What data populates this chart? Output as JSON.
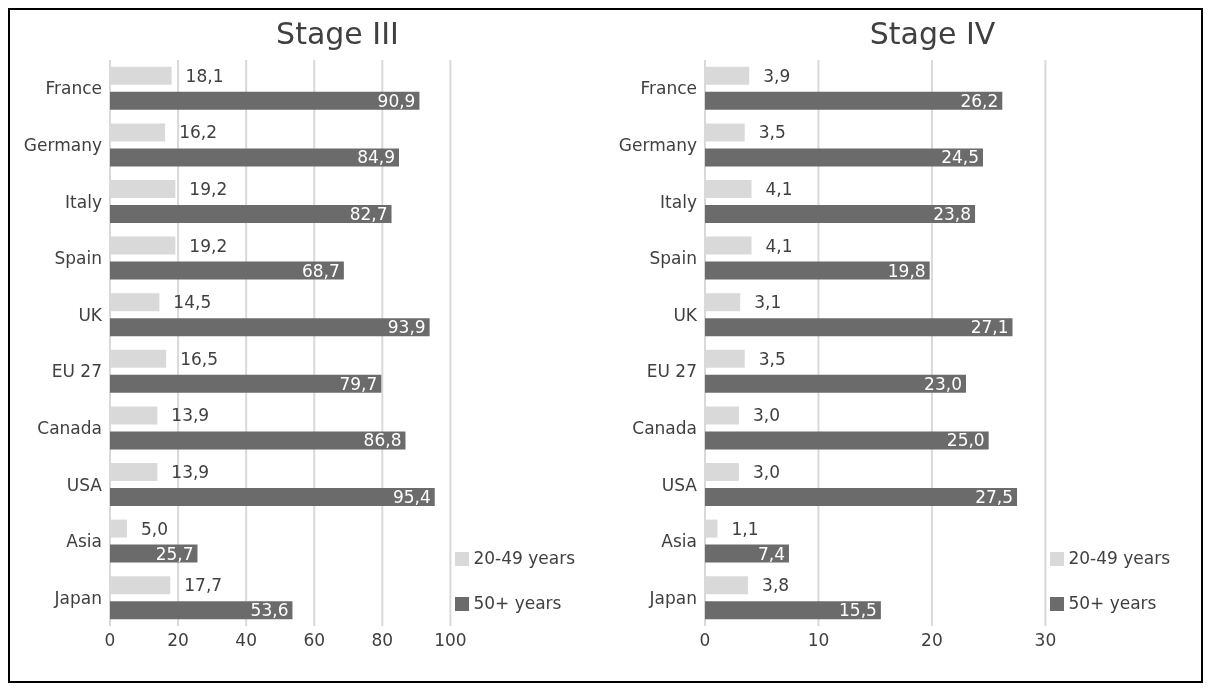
{
  "chart_data": [
    {
      "type": "bar",
      "title": "Stage III",
      "orientation": "horizontal",
      "categories": [
        "France",
        "Germany",
        "Italy",
        "Spain",
        "UK",
        "EU 27",
        "Canada",
        "USA",
        "Asia",
        "Japan"
      ],
      "series": [
        {
          "name": "20-49 years",
          "color": "#d9d9d9",
          "values": [
            18.1,
            16.2,
            19.2,
            19.2,
            14.5,
            16.5,
            13.9,
            13.9,
            5.0,
            17.7
          ],
          "value_labels": [
            "18,1",
            "16,2",
            "19,2",
            "19,2",
            "14,5",
            "16,5",
            "13,9",
            "13,9",
            "5,0",
            "17,7"
          ]
        },
        {
          "name": "50+ years",
          "color": "#6b6b6b",
          "values": [
            90.9,
            84.9,
            82.7,
            68.7,
            93.9,
            79.7,
            86.8,
            95.4,
            25.7,
            53.6
          ],
          "value_labels": [
            "90,9",
            "84,9",
            "82,7",
            "68,7",
            "93,9",
            "79,7",
            "86,8",
            "95,4",
            "25,7",
            "53,6"
          ]
        }
      ],
      "xlim": [
        0,
        100
      ],
      "xticks": [
        0,
        20,
        40,
        60,
        80,
        100
      ],
      "grid": "x",
      "legend": "bottom right"
    },
    {
      "type": "bar",
      "title": "Stage IV",
      "orientation": "horizontal",
      "categories": [
        "France",
        "Germany",
        "Italy",
        "Spain",
        "UK",
        "EU 27",
        "Canada",
        "USA",
        "Asia",
        "Japan"
      ],
      "series": [
        {
          "name": "20-49 years",
          "color": "#d9d9d9",
          "values": [
            3.9,
            3.5,
            4.1,
            4.1,
            3.1,
            3.5,
            3.0,
            3.0,
            1.1,
            3.8
          ],
          "value_labels": [
            "3,9",
            "3,5",
            "4,1",
            "4,1",
            "3,1",
            "3,5",
            "3,0",
            "3,0",
            "1,1",
            "3,8"
          ]
        },
        {
          "name": "50+ years",
          "color": "#6b6b6b",
          "values": [
            26.2,
            24.5,
            23.8,
            19.8,
            27.1,
            23.0,
            25.0,
            27.5,
            7.4,
            15.5
          ],
          "value_labels": [
            "26,2",
            "24,5",
            "23,8",
            "19,8",
            "27,1",
            "23,0",
            "25,0",
            "27,5",
            "7,4",
            "15,5"
          ]
        }
      ],
      "xlim": [
        0,
        30
      ],
      "xticks": [
        0,
        10,
        20,
        30
      ],
      "grid": "x",
      "legend": "bottom right"
    }
  ]
}
